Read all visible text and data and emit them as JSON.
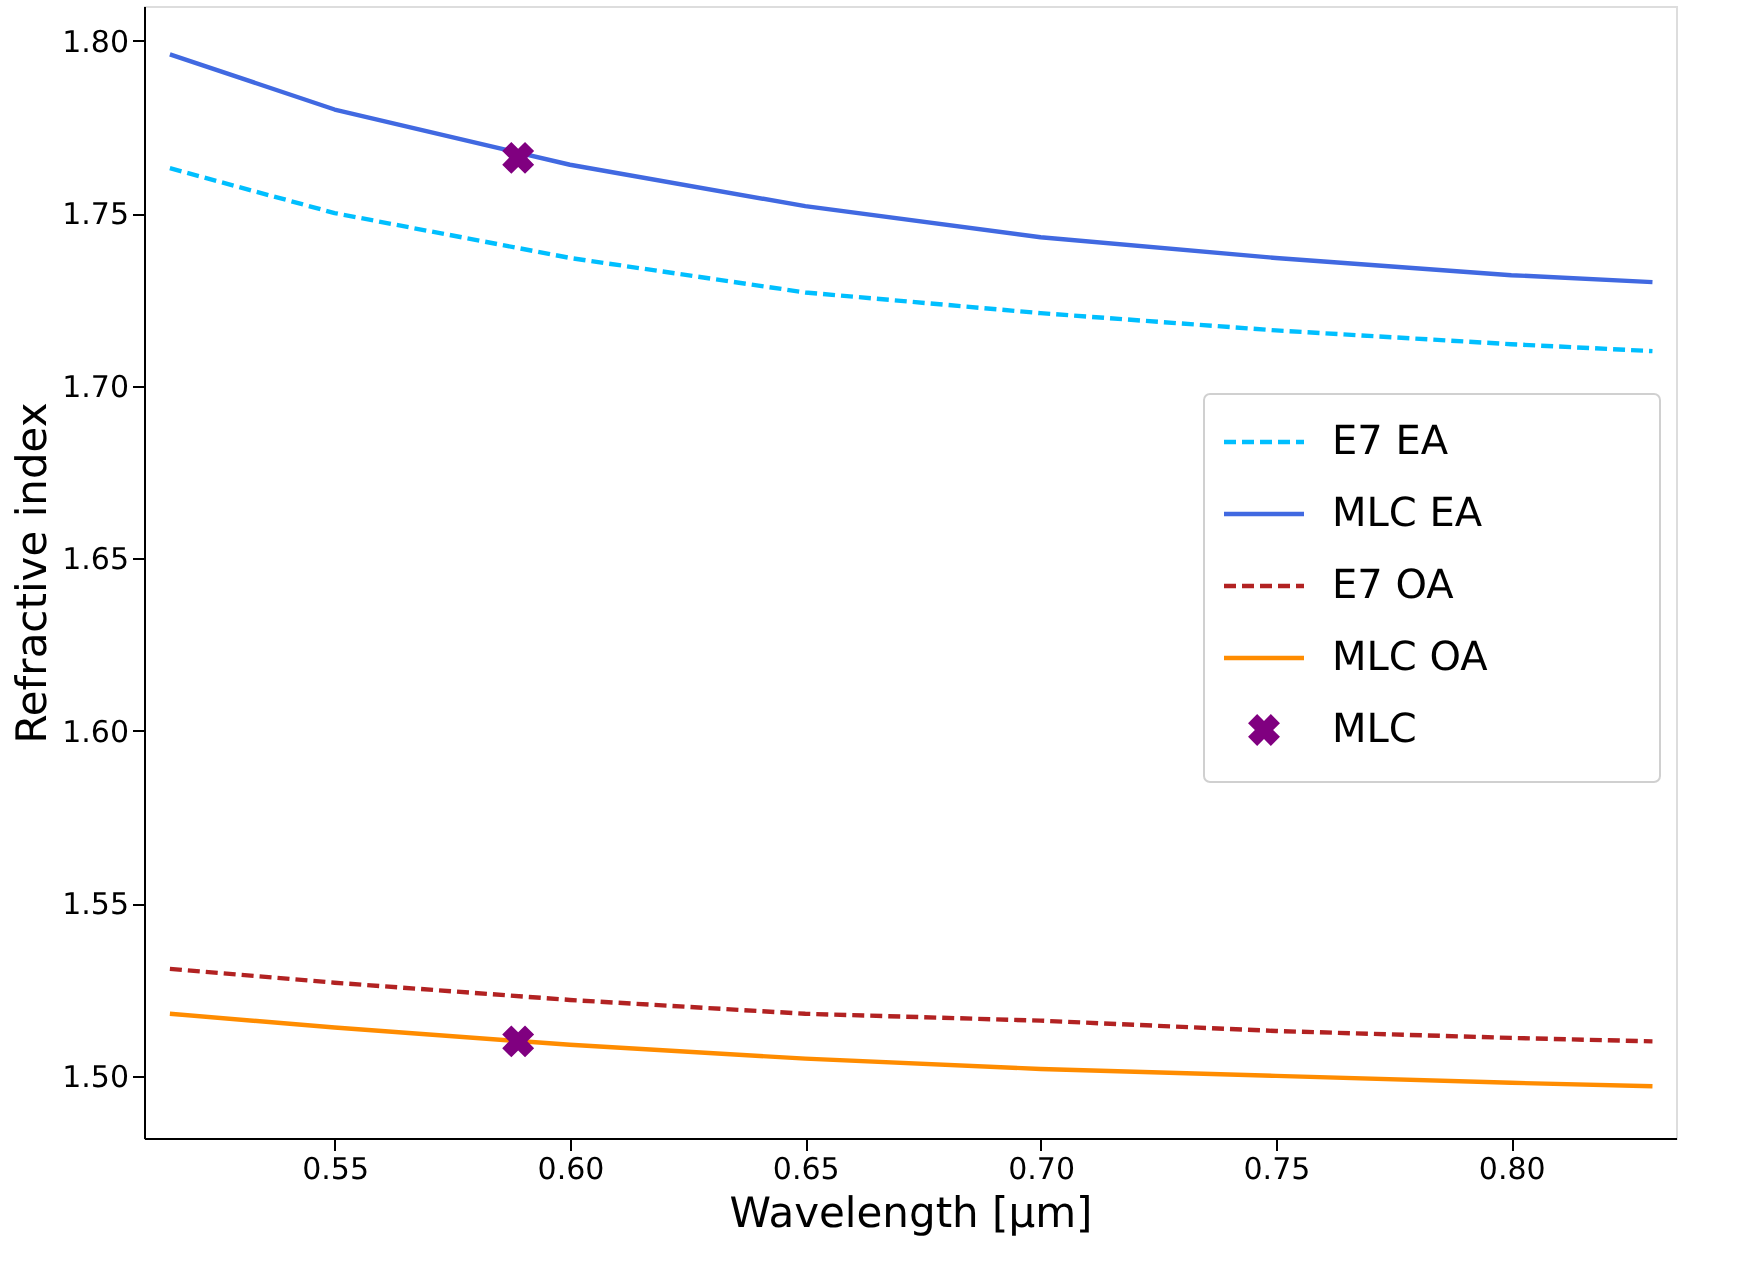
{
  "chart_data": {
    "type": "line",
    "xlabel": "Wavelength [μm]",
    "ylabel": "Refractive index",
    "x": [
      0.515,
      0.55,
      0.6,
      0.65,
      0.7,
      0.75,
      0.8,
      0.83
    ],
    "series": [
      {
        "name": "E7 EA",
        "color": "#00bfff",
        "line_style": "dashed",
        "values": [
          1.763,
          1.75,
          1.737,
          1.727,
          1.721,
          1.716,
          1.712,
          1.71
        ]
      },
      {
        "name": "MLC EA",
        "color": "#4169e1",
        "line_style": "solid",
        "values": [
          1.796,
          1.78,
          1.764,
          1.752,
          1.743,
          1.737,
          1.732,
          1.73
        ]
      },
      {
        "name": "E7 OA",
        "color": "#b22222",
        "line_style": "dashed",
        "values": [
          1.531,
          1.527,
          1.522,
          1.518,
          1.516,
          1.513,
          1.511,
          1.51
        ]
      },
      {
        "name": "MLC OA",
        "color": "#ff8c00",
        "line_style": "solid",
        "values": [
          1.518,
          1.514,
          1.509,
          1.505,
          1.502,
          1.5,
          1.498,
          1.497
        ]
      },
      {
        "name": "MLC",
        "type": "scatter",
        "marker": "cross",
        "color": "#800080",
        "x": [
          0.589,
          0.589
        ],
        "values": [
          1.766,
          1.51
        ]
      }
    ],
    "xlim": [
      0.5095,
      0.835
    ],
    "xticks": [
      {
        "value": 0.55,
        "label": "0.55"
      },
      {
        "value": 0.6,
        "label": "0.60"
      },
      {
        "value": 0.65,
        "label": "0.65"
      },
      {
        "value": 0.7,
        "label": "0.70"
      },
      {
        "value": 0.75,
        "label": "0.75"
      },
      {
        "value": 0.8,
        "label": "0.80"
      }
    ],
    "ylim": [
      1.482,
      1.81
    ],
    "yticks": [
      {
        "value": 1.5,
        "label": "1.50"
      },
      {
        "value": 1.55,
        "label": "1.55"
      },
      {
        "value": 1.6,
        "label": "1.60"
      },
      {
        "value": 1.65,
        "label": "1.65"
      },
      {
        "value": 1.7,
        "label": "1.70"
      },
      {
        "value": 1.75,
        "label": "1.75"
      },
      {
        "value": 1.8,
        "label": "1.80"
      }
    ],
    "grid": false,
    "legend": "right"
  }
}
